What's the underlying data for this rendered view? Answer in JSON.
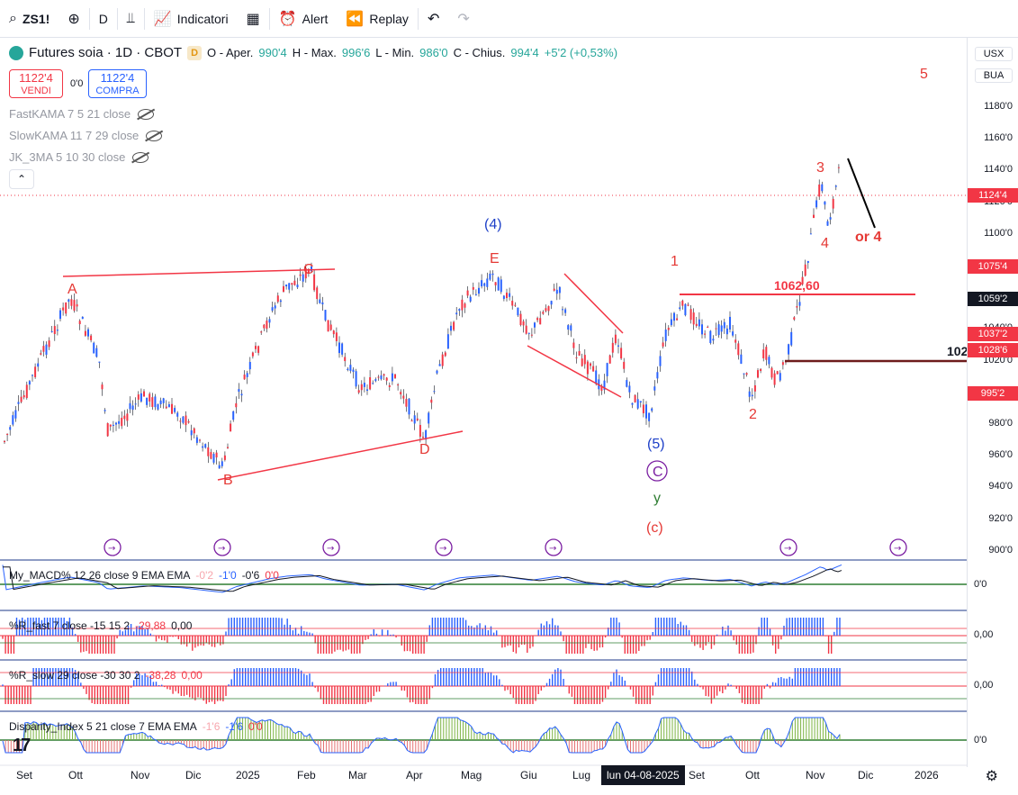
{
  "toolbar": {
    "symbol": "ZS1!",
    "interval": "D",
    "indicators_label": "Indicatori",
    "alert_label": "Alert",
    "replay_label": "Replay"
  },
  "legend": {
    "title": "Futures soia · 1D · CBOT",
    "badge": "D",
    "o_label": "O - Aper.",
    "o_val": "990'4",
    "h_label": "H - Max.",
    "h_val": "996'6",
    "l_label": "L - Min.",
    "l_val": "986'0",
    "c_label": "C - Chius.",
    "c_val": "994'4",
    "change": "+5'2 (+0,53%)"
  },
  "trade": {
    "sell_price": "1122'4",
    "sell_label": "VENDI",
    "buy_price": "1122'4",
    "buy_label": "COMPRA",
    "spread": "0'0"
  },
  "indicators": [
    {
      "label": "FastKAMA 7 5 21 close"
    },
    {
      "label": "SlowKAMA 11 7 29 close"
    },
    {
      "label": "JK_3MA 5 10 30 close"
    }
  ],
  "price_scale": {
    "currency": "USX",
    "unit": "BUA",
    "ticks": [
      "1180'0",
      "1160'0",
      "1140'0",
      "1120'0",
      "1100'0",
      "1080'0",
      "1060'0",
      "1040'0",
      "1020'0",
      "1000'0",
      "980'0",
      "960'0",
      "940'0",
      "920'0",
      "900'0"
    ],
    "labels": [
      {
        "text": "1124'4",
        "color": "#f23645"
      },
      {
        "text": "1075'4",
        "color": "#f23645"
      },
      {
        "text": "1059'2",
        "color": "#131722"
      },
      {
        "text": "1037'2",
        "color": "#f23645"
      },
      {
        "text": "1028'6",
        "color": "#f23645"
      },
      {
        "text": "995'2",
        "color": "#f23645"
      }
    ]
  },
  "annotations": {
    "level_1062": "1062,60",
    "cut_label": "102",
    "wave_4_paren": "(4)",
    "wave_5_paren": "(5)",
    "wave_c_paren": "(c)",
    "wave_c_circle": "C",
    "wave_y": "y",
    "A": "A",
    "B": "B",
    "C": "C",
    "D": "D",
    "E": "E",
    "w1": "1",
    "w2": "2",
    "w3": "3",
    "w4": "4",
    "w5": "5",
    "or4": "or 4"
  },
  "panes": {
    "macd": {
      "name": "My_MACD% 12 26 close 9 EMA EMA",
      "v1": "-0'2",
      "v2": "-1'0",
      "v3": "-0'6",
      "v4": "0'0",
      "scale": "0'0"
    },
    "rfast": {
      "name": "%R_fast 7 close -15 15 2",
      "v1": "-29,88",
      "v2": "0,00",
      "scale": "0,00"
    },
    "rslow": {
      "name": "%R_slow 29 close -30 30 2",
      "v1": "-38,28",
      "v2": "0,00",
      "scale": "0,00"
    },
    "disp": {
      "name": "Disparity_Index 5 21 close 7 EMA EMA",
      "v1": "-1'6",
      "v2": "-1'6",
      "v3": "0'0",
      "scale": "0'0"
    }
  },
  "time_axis": {
    "ticks": [
      "Set",
      "Ott",
      "Nov",
      "Dic",
      "2025",
      "Feb",
      "Mar",
      "Apr",
      "Mag",
      "Giu",
      "Lug",
      "Set",
      "Ott",
      "Nov",
      "Dic",
      "2026"
    ],
    "crosshair": "lun 04-08-2025"
  },
  "colors": {
    "up": "#2962ff",
    "down": "#f23645",
    "wave_red": "#e53935",
    "wave_blue": "#1e40c8",
    "wave_green": "#2e7d32",
    "level_dark": "#6d1b1b"
  }
}
